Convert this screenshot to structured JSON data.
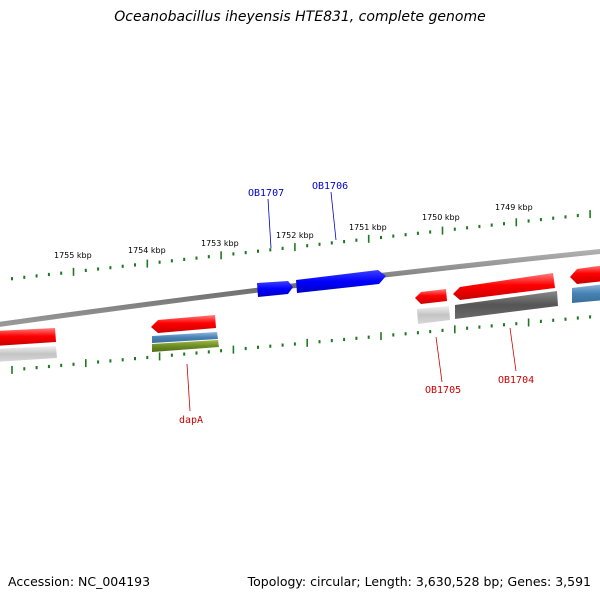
{
  "title": "Oceanobacillus iheyensis HTE831, complete genome",
  "footer": {
    "accession": "Accession: NC_004193",
    "summary": "Topology: circular; Length: 3,630,528 bp; Genes: 3,591"
  },
  "colors": {
    "minor_tick": "#1f7a1f",
    "forward_label": "#0000cc",
    "reverse_label": "#cc0000",
    "backbone": "#777777"
  },
  "ticks": [
    {
      "label": "1755 kbp"
    },
    {
      "label": "1754 kbp"
    },
    {
      "label": "1753 kbp"
    },
    {
      "label": "1752 kbp"
    },
    {
      "label": "1751 kbp"
    },
    {
      "label": "1750 kbp"
    },
    {
      "label": "1749 kbp"
    }
  ],
  "gene_labels": {
    "forward": [
      {
        "name": "OB1707"
      },
      {
        "name": "OB1706"
      }
    ],
    "reverse": [
      {
        "name": "OB1705"
      },
      {
        "name": "OB1704"
      },
      {
        "name": "dapA"
      }
    ]
  }
}
